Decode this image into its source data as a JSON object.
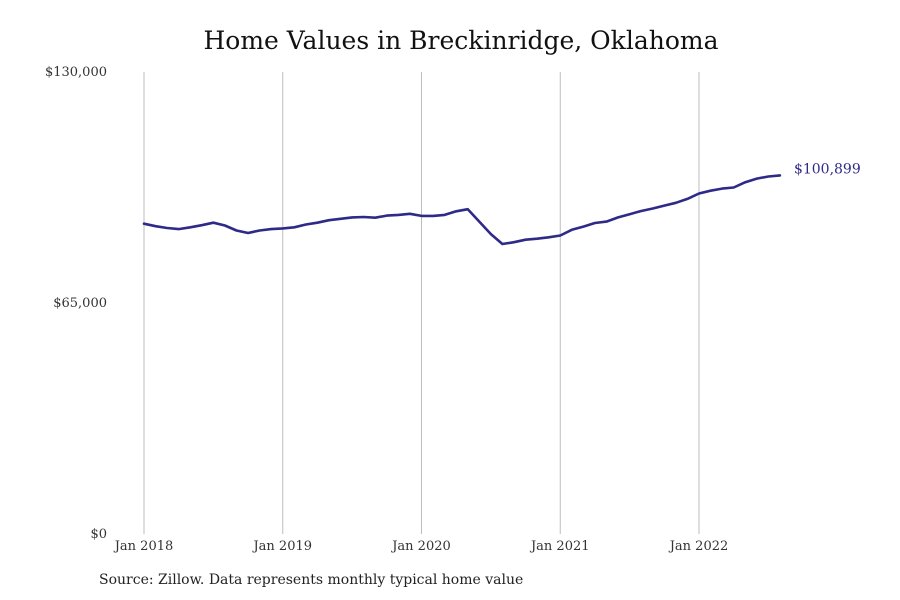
{
  "chart_data": {
    "type": "line",
    "title": "Home Values in Breckinridge, Oklahoma",
    "source_note": "Source: Zillow. Data represents monthly typical home value",
    "xlabel": "",
    "ylabel": "",
    "ylim": [
      0,
      130000
    ],
    "y_ticks": [
      {
        "value": 0,
        "label": "$0"
      },
      {
        "value": 65000,
        "label": "$65,000"
      },
      {
        "value": 130000,
        "label": "$130,000"
      }
    ],
    "x_ticks": [
      {
        "value": "2018-01",
        "label": "Jan 2018"
      },
      {
        "value": "2019-01",
        "label": "Jan 2019"
      },
      {
        "value": "2020-01",
        "label": "Jan 2020"
      },
      {
        "value": "2021-01",
        "label": "Jan 2021"
      },
      {
        "value": "2022-01",
        "label": "Jan 2022"
      }
    ],
    "grid": "vertical",
    "line_color": "#2e2a87",
    "end_label": "$100,899",
    "series": [
      {
        "x": [
          "2018-01",
          "2018-02",
          "2018-03",
          "2018-04",
          "2018-05",
          "2018-06",
          "2018-07",
          "2018-08",
          "2018-09",
          "2018-10",
          "2018-11",
          "2018-12",
          "2019-01",
          "2019-02",
          "2019-03",
          "2019-04",
          "2019-05",
          "2019-06",
          "2019-07",
          "2019-08",
          "2019-09",
          "2019-10",
          "2019-11",
          "2019-12",
          "2020-01",
          "2020-02",
          "2020-03",
          "2020-04",
          "2020-05",
          "2020-06",
          "2020-07",
          "2020-08",
          "2020-09",
          "2020-10",
          "2020-11",
          "2020-12",
          "2021-01",
          "2021-02",
          "2021-03",
          "2021-04",
          "2021-05",
          "2021-06",
          "2021-07",
          "2021-08",
          "2021-09",
          "2021-10",
          "2021-11",
          "2021-12",
          "2022-01",
          "2022-02",
          "2022-03",
          "2022-04",
          "2022-05",
          "2022-06",
          "2022-07",
          "2022-08"
        ],
        "values": [
          87300,
          86600,
          86100,
          85800,
          86300,
          86900,
          87600,
          86800,
          85400,
          84700,
          85400,
          85800,
          86000,
          86300,
          87100,
          87600,
          88300,
          88700,
          89100,
          89200,
          89000,
          89600,
          89800,
          90100,
          89500,
          89500,
          89800,
          90800,
          91400,
          87900,
          84400,
          81600,
          82100,
          82800,
          83100,
          83500,
          84000,
          85600,
          86500,
          87500,
          87900,
          89100,
          90000,
          90900,
          91600,
          92400,
          93200,
          94300,
          95800,
          96600,
          97200,
          97500,
          99000,
          100000,
          100600,
          100899
        ]
      }
    ]
  }
}
